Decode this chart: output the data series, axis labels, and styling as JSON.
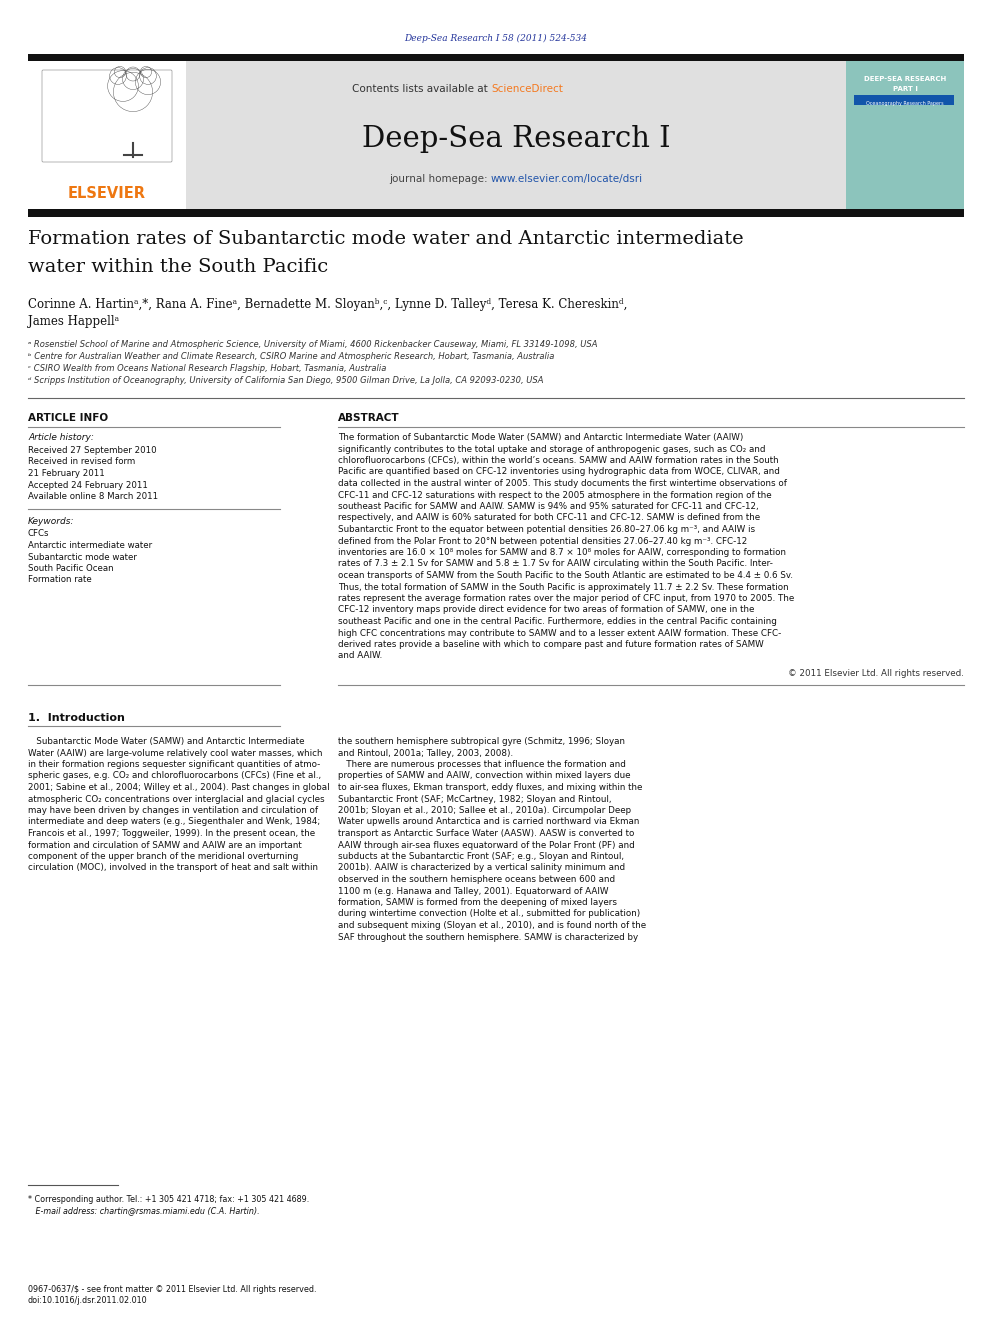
{
  "journal_ref": "Deep-Sea Research I 58 (2011) 524-534",
  "journal_name": "Deep-Sea Research I",
  "contents_line_pre": "Contents lists available at ",
  "contents_line_sd": "ScienceDirect",
  "journal_homepage_pre": "journal homepage: ",
  "journal_homepage_url": "www.elsevier.com/locate/dsri",
  "elsevier_text": "ELSEVIER",
  "title_line1": "Formation rates of Subantarctic mode water and Antarctic intermediate",
  "title_line2": "water within the South Pacific",
  "authors_line1": "Corinne A. Hartinᵃ,*, Rana A. Fineᵃ, Bernadette M. Sloyanᵇ,ᶜ, Lynne D. Talleyᵈ, Teresa K. Chereskinᵈ,",
  "authors_line2": "James Happellᵃ",
  "affil_a": "ᵃ Rosenstiel School of Marine and Atmospheric Science, University of Miami, 4600 Rickenbacker Causeway, Miami, FL 33149-1098, USA",
  "affil_b": "ᵇ Centre for Australian Weather and Climate Research, CSIRO Marine and Atmospheric Research, Hobart, Tasmania, Australia",
  "affil_c": "ᶜ CSIRO Wealth from Oceans National Research Flagship, Hobart, Tasmania, Australia",
  "affil_d": "ᵈ Scripps Institution of Oceanography, University of California San Diego, 9500 Gilman Drive, La Jolla, CA 92093-0230, USA",
  "article_info_header": "ARTICLE INFO",
  "abstract_header": "ABSTRACT",
  "article_history_label": "Article history:",
  "received1": "Received 27 September 2010",
  "received2": "Received in revised form",
  "received2b": "21 February 2011",
  "accepted": "Accepted 24 February 2011",
  "available": "Available online 8 March 2011",
  "keywords_label": "Keywords:",
  "kw1": "CFCs",
  "kw2": "Antarctic intermediate water",
  "kw3": "Subantarctic mode water",
  "kw4": "South Pacific Ocean",
  "kw5": "Formation rate",
  "abstract_text": "The formation of Subantarctic Mode Water (SAMW) and Antarctic Intermediate Water (AAIW)\nsignificantly contributes to the total uptake and storage of anthropogenic gases, such as CO₂ and\nchlorofluorocarbons (CFCs), within the world’s oceans. SAMW and AAIW formation rates in the South\nPacific are quantified based on CFC-12 inventories using hydrographic data from WOCE, CLIVAR, and\ndata collected in the austral winter of 2005. This study documents the first wintertime observations of\nCFC-11 and CFC-12 saturations with respect to the 2005 atmosphere in the formation region of the\nsoutheast Pacific for SAMW and AAIW. SAMW is 94% and 95% saturated for CFC-11 and CFC-12,\nrespectively, and AAIW is 60% saturated for both CFC-11 and CFC-12. SAMW is defined from the\nSubantarctic Front to the equator between potential densities 26.80–27.06 kg m⁻³, and AAIW is\ndefined from the Polar Front to 20°N between potential densities 27.06–27.40 kg m⁻³. CFC-12\ninventories are 16.0 × 10⁸ moles for SAMW and 8.7 × 10⁸ moles for AAIW, corresponding to formation\nrates of 7.3 ± 2.1 Sv for SAMW and 5.8 ± 1.7 Sv for AAIW circulating within the South Pacific. Inter-\nocean transports of SAMW from the South Pacific to the South Atlantic are estimated to be 4.4 ± 0.6 Sv.\nThus, the total formation of SAMW in the South Pacific is approximately 11.7 ± 2.2 Sv. These formation\nrates represent the average formation rates over the major period of CFC input, from 1970 to 2005. The\nCFC-12 inventory maps provide direct evidence for two areas of formation of SAMW, one in the\nsoutheast Pacific and one in the central Pacific. Furthermore, eddies in the central Pacific containing\nhigh CFC concentrations may contribute to SAMW and to a lesser extent AAIW formation. These CFC-\nderived rates provide a baseline with which to compare past and future formation rates of SAMW\nand AAIW.",
  "copyright": "© 2011 Elsevier Ltd. All rights reserved.",
  "intro_header": "1.  Introduction",
  "intro_col1_indent": "   Subantarctic Mode Water (SAMW) and Antarctic Intermediate",
  "intro_col1": [
    "   Subantarctic Mode Water (SAMW) and Antarctic Intermediate",
    "Water (AAIW) are large-volume relatively cool water masses, which",
    "in their formation regions sequester significant quantities of atmo-",
    "spheric gases, e.g. CO₂ and chlorofluorocarbons (CFCs) (Fine et al.,",
    "2001; Sabine et al., 2004; Willey et al., 2004). Past changes in global",
    "atmospheric CO₂ concentrations over interglacial and glacial cycles",
    "may have been driven by changes in ventilation and circulation of",
    "intermediate and deep waters (e.g., Siegenthaler and Wenk, 1984;",
    "Francois et al., 1997; Toggweiler, 1999). In the present ocean, the",
    "formation and circulation of SAMW and AAIW are an important",
    "component of the upper branch of the meridional overturning",
    "circulation (MOC), involved in the transport of heat and salt within"
  ],
  "intro_col2": [
    "the southern hemisphere subtropical gyre (Schmitz, 1996; Sloyan",
    "and Rintoul, 2001a; Talley, 2003, 2008).",
    "   There are numerous processes that influence the formation and",
    "properties of SAMW and AAIW, convection within mixed layers due",
    "to air-sea fluxes, Ekman transport, eddy fluxes, and mixing within the",
    "Subantarctic Front (SAF; McCartney, 1982; Sloyan and Rintoul,",
    "2001b; Sloyan et al., 2010; Sallee et al., 2010a). Circumpolar Deep",
    "Water upwells around Antarctica and is carried northward via Ekman",
    "transport as Antarctic Surface Water (AASW). AASW is converted to",
    "AAIW through air-sea fluxes equatorward of the Polar Front (PF) and",
    "subducts at the Subantarctic Front (SAF; e.g., Sloyan and Rintoul,",
    "2001b). AAIW is characterized by a vertical salinity minimum and",
    "observed in the southern hemisphere oceans between 600 and",
    "1100 m (e.g. Hanawa and Talley, 2001). Equatorward of AAIW",
    "formation, SAMW is formed from the deepening of mixed layers",
    "during wintertime convection (Holte et al., submitted for publication)",
    "and subsequent mixing (Sloyan et al., 2010), and is found north of the",
    "SAF throughout the southern hemisphere. SAMW is characterized by"
  ],
  "footnote_line": "* Corresponding author. Tel.: +1 305 421 4718; fax: +1 305 421 4689.",
  "email_line": "   E-mail address: chartin@rsmas.miami.edu (C.A. Hartin).",
  "footer1": "0967-0637/$ - see front matter © 2011 Elsevier Ltd. All rights reserved.",
  "footer2": "doi:10.1016/j.dsr.2011.02.010",
  "bg_color": "#ffffff",
  "header_bg": "#e0e0e0",
  "dark_bar_color": "#111111",
  "blue_color": "#2255aa",
  "orange_color": "#ee7711",
  "sciencedirect_color": "#f47920",
  "journal_ref_color": "#22339a",
  "teal_color": "#8cc4bc",
  "cover_text1": "DEEP-SEA RESEARCH",
  "cover_text2": "PART I",
  "cover_text3": "Oceanography Research Papers"
}
